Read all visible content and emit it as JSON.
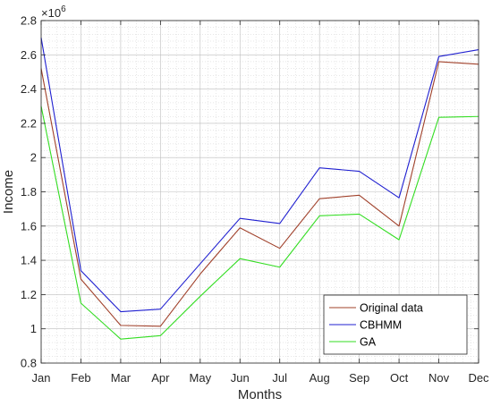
{
  "chart_data": {
    "type": "line",
    "title": "",
    "xlabel": "Months",
    "ylabel": "Income",
    "exponent_label": "×10",
    "exponent_power": "6",
    "y_multiplier": 1000000,
    "categories": [
      "Jan",
      "Feb",
      "Mar",
      "Apr",
      "May",
      "Jun",
      "Jul",
      "Aug",
      "Sep",
      "Oct",
      "Nov",
      "Dec"
    ],
    "ylim": [
      0.8,
      2.8
    ],
    "yticks": [
      0.8,
      1.0,
      1.2,
      1.4,
      1.6,
      1.8,
      2.0,
      2.2,
      2.4,
      2.6,
      2.8
    ],
    "ytick_labels": [
      "0.8",
      "1",
      "1.2",
      "1.4",
      "1.6",
      "1.8",
      "2",
      "2.2",
      "2.4",
      "2.6",
      "2.8"
    ],
    "grid": true,
    "minor_grid": true,
    "legend_position": "bottom-right",
    "series": [
      {
        "name": "Original data",
        "color": "#a0402a",
        "values": [
          2.52,
          1.29,
          1.02,
          1.015,
          1.32,
          1.59,
          1.47,
          1.76,
          1.78,
          1.6,
          2.56,
          2.545
        ]
      },
      {
        "name": "CBHMM",
        "color": "#1f1fd0",
        "values": [
          2.7,
          1.34,
          1.1,
          1.115,
          1.38,
          1.645,
          1.615,
          1.94,
          1.92,
          1.765,
          2.59,
          2.63
        ]
      },
      {
        "name": "GA",
        "color": "#33dd22",
        "values": [
          2.3,
          1.15,
          0.94,
          0.96,
          1.19,
          1.41,
          1.36,
          1.66,
          1.67,
          1.52,
          2.235,
          2.24
        ]
      }
    ]
  }
}
